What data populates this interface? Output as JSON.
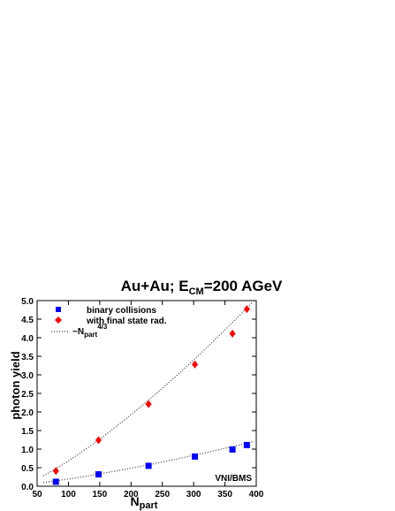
{
  "chart_data": {
    "type": "scatter",
    "title_main": "Au+Au; E",
    "title_sub": "CM",
    "title_rest": "=200 AGeV",
    "xlabel_main": "N",
    "xlabel_sub": "part",
    "ylabel": "photon yield",
    "xlim": [
      50,
      400
    ],
    "ylim": [
      0,
      5
    ],
    "xticks": [
      "50",
      "100",
      "150",
      "200",
      "250",
      "300",
      "350",
      "400"
    ],
    "yticks": [
      "0.0",
      "0.5",
      "1.0",
      "1.5",
      "2.0",
      "2.5",
      "3.0",
      "3.5",
      "4.0",
      "4.5",
      "5.0"
    ],
    "grid": false,
    "legend_position": "top-left",
    "series": [
      {
        "name": "binary collisions",
        "marker": "square",
        "color": "#0000ff",
        "x": [
          80,
          148,
          228,
          302,
          362,
          385
        ],
        "y": [
          0.12,
          0.32,
          0.55,
          0.8,
          0.99,
          1.11
        ]
      },
      {
        "name": "with final state rad.",
        "marker": "diamond",
        "color": "#ff0000",
        "x": [
          80,
          148,
          228,
          302,
          362,
          385
        ],
        "y": [
          0.41,
          1.24,
          2.21,
          3.28,
          4.11,
          4.77
        ],
        "yerr": [
          0.07,
          0.07,
          0.07,
          0.1,
          0.1,
          0.07
        ]
      }
    ],
    "fit_label_main": "~N",
    "fit_label_sub": "part",
    "fit_label_sup": "4/3",
    "fits": [
      {
        "x": [
          60,
          395
        ],
        "y": [
          0.1,
          1.2
        ],
        "style": "dotted"
      },
      {
        "x": [
          60,
          395
        ],
        "y": [
          0.28,
          4.97
        ],
        "style": "dotted"
      }
    ],
    "annotation": "VNI/BMS"
  }
}
